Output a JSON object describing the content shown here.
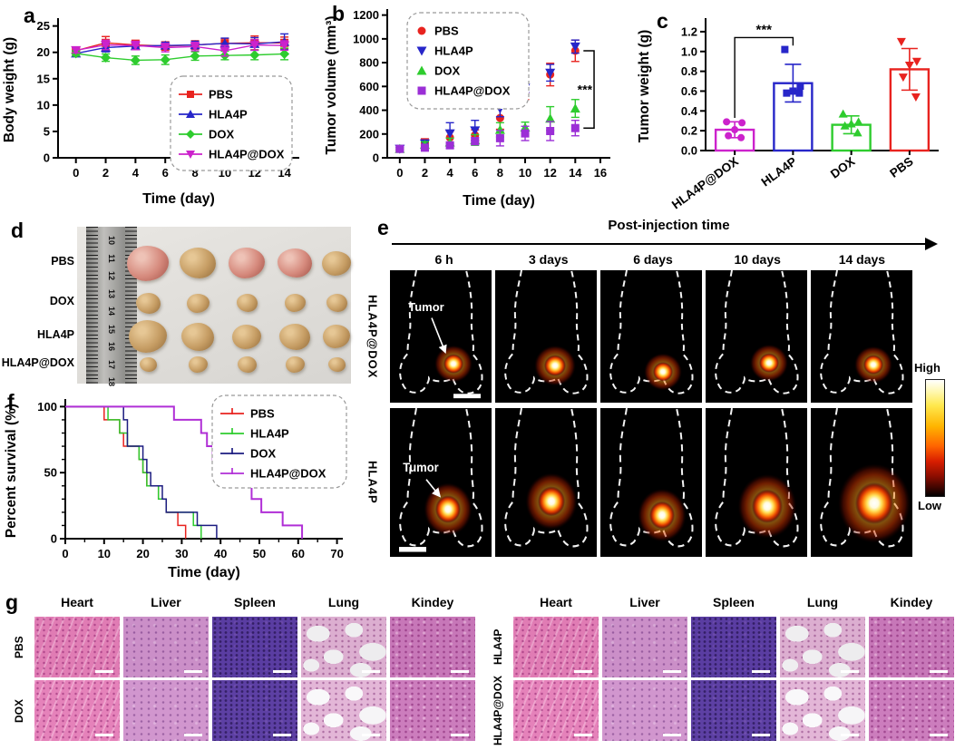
{
  "panel_labels": {
    "a": "a",
    "b": "b",
    "c": "c",
    "d": "d",
    "e": "e",
    "f": "f",
    "g": "g"
  },
  "panel_d": {
    "rows": [
      "PBS",
      "DOX",
      "HLA4P",
      "HLA4P@DOX"
    ],
    "ruler_numbers": [
      "10",
      "11",
      "12",
      "13",
      "14",
      "15",
      "16",
      "17",
      "18"
    ]
  },
  "panel_e": {
    "header": "Post-injection time",
    "timepoints": [
      "6 h",
      "3 days",
      "6 days",
      "10 days",
      "14 days"
    ],
    "row_labels": [
      "HLA4P@DOX",
      "HLA4P"
    ],
    "tumor_label": "Tumor",
    "colorbar_high": "High",
    "colorbar_low": "Low"
  },
  "panel_g": {
    "organs": [
      "Heart",
      "Liver",
      "Spleen",
      "Lung",
      "Kindey"
    ],
    "blocks": [
      {
        "rows": [
          "PBS",
          "DOX"
        ]
      },
      {
        "rows": [
          "HLA4P",
          "HLA4P@DOX"
        ]
      }
    ]
  },
  "chart_data": [
    {
      "id": "a",
      "type": "line",
      "xlabel": "Time (day)",
      "ylabel": "Body weight (g)",
      "x": [
        0,
        2,
        4,
        6,
        8,
        10,
        12,
        14
      ],
      "xticks": [
        0,
        2,
        4,
        6,
        8,
        10,
        12,
        14
      ],
      "yticks": [
        0,
        5,
        10,
        15,
        20,
        25
      ],
      "xlim": [
        -1.2,
        15
      ],
      "ylim": [
        0,
        25.8
      ],
      "legend_position": "inside bottom-right dashed box",
      "series": [
        {
          "name": "PBS",
          "color": "#e8231f",
          "marker": "square",
          "values": [
            20.3,
            21.8,
            21.4,
            21.2,
            21.4,
            21.7,
            21.8,
            21.8
          ],
          "errors": [
            0.6,
            1.2,
            0.9,
            0.8,
            0.8,
            0.9,
            1.3,
            1.1
          ]
        },
        {
          "name": "HLA4P",
          "color": "#2726c9",
          "marker": "triangle-up",
          "values": [
            19.8,
            20.9,
            21.2,
            21.3,
            21.4,
            21.7,
            21.6,
            22.0
          ],
          "errors": [
            0.5,
            0.8,
            0.7,
            0.6,
            0.7,
            1.0,
            1.2,
            1.5
          ]
        },
        {
          "name": "DOX",
          "color": "#2ecc2e",
          "marker": "diamond",
          "values": [
            19.8,
            19.0,
            18.5,
            18.6,
            19.3,
            19.4,
            19.5,
            19.7
          ],
          "errors": [
            0.5,
            0.7,
            0.8,
            0.9,
            0.8,
            0.8,
            0.9,
            1.1
          ]
        },
        {
          "name": "HLA4P@DOX",
          "color": "#cc22cc",
          "marker": "triangle-down",
          "values": [
            20.4,
            21.4,
            21.3,
            20.9,
            21.1,
            20.3,
            21.4,
            21.3
          ],
          "errors": [
            0.5,
            0.9,
            0.8,
            0.8,
            0.8,
            1.0,
            1.0,
            0.9
          ]
        }
      ]
    },
    {
      "id": "b",
      "type": "scatter",
      "xlabel": "Time (day)",
      "ylabel": "Tumor volume (mm³)",
      "x": [
        0,
        2,
        4,
        6,
        8,
        10,
        12,
        14
      ],
      "xticks": [
        0,
        2,
        4,
        6,
        8,
        10,
        12,
        14,
        16
      ],
      "yticks": [
        0,
        200,
        400,
        600,
        800,
        1000,
        1200
      ],
      "xlim": [
        -1,
        16.8
      ],
      "ylim": [
        0,
        1220
      ],
      "legend_position": "inside top-left dashed box",
      "significance": {
        "label": "***",
        "day": 14,
        "from": 900,
        "to": 250
      },
      "series": [
        {
          "name": "PBS",
          "color": "#e8231f",
          "marker": "circle",
          "values": [
            75,
            125,
            170,
            190,
            335,
            540,
            700,
            900
          ],
          "errors": [
            10,
            35,
            55,
            45,
            95,
            50,
            95,
            90
          ]
        },
        {
          "name": "HLA4P",
          "color": "#2726c9",
          "marker": "triangle-down",
          "values": [
            75,
            120,
            205,
            230,
            415,
            590,
            715,
            935
          ],
          "errors": [
            10,
            30,
            90,
            85,
            70,
            40,
            70,
            55
          ]
        },
        {
          "name": "DOX",
          "color": "#2ecc2e",
          "marker": "triangle-up",
          "values": [
            75,
            110,
            130,
            150,
            235,
            255,
            330,
            415
          ],
          "errors": [
            10,
            25,
            35,
            45,
            60,
            45,
            100,
            75
          ]
        },
        {
          "name": "HLA4P@DOX",
          "color": "#9b2fd6",
          "marker": "square",
          "values": [
            75,
            85,
            105,
            140,
            165,
            205,
            225,
            250
          ],
          "errors": [
            10,
            20,
            25,
            30,
            65,
            60,
            80,
            65
          ]
        }
      ]
    },
    {
      "id": "c",
      "type": "bar",
      "ylabel": "Tumor weight (g)",
      "categories": [
        "HLA4P@DOX",
        "HLA4P",
        "DOX",
        "PBS"
      ],
      "values": [
        0.21,
        0.68,
        0.26,
        0.82
      ],
      "errors": [
        0.08,
        0.19,
        0.09,
        0.21
      ],
      "colors": [
        "#cc22cc",
        "#2726c9",
        "#2ecc2e",
        "#e8231f"
      ],
      "markers": [
        "circle",
        "square",
        "triangle-up",
        "triangle-down"
      ],
      "points": [
        [
          0.29,
          0.28,
          0.21,
          0.15,
          0.13
        ],
        [
          1.02,
          0.65,
          0.6,
          0.58,
          0.58
        ],
        [
          0.37,
          0.29,
          0.27,
          0.25,
          0.18
        ],
        [
          1.1,
          0.9,
          0.86,
          0.74,
          0.54
        ]
      ],
      "yticks": [
        0,
        0.2,
        0.4,
        0.6,
        0.8,
        1,
        1.2
      ],
      "ydecimals": 1,
      "ylim": [
        0,
        1.3
      ],
      "significance": {
        "label": "***",
        "between": [
          0,
          1
        ]
      }
    },
    {
      "id": "f",
      "type": "step",
      "xlabel": "Time (day)",
      "ylabel": "Percent survival (%)",
      "xticks": [
        0,
        10,
        20,
        30,
        40,
        50,
        60,
        70
      ],
      "yticks": [
        0,
        50,
        100
      ],
      "xminor": 5,
      "yminor": 10,
      "xlim": [
        0,
        71.5
      ],
      "ylim": [
        0,
        103
      ],
      "legend_position": "inside top-right dashed box",
      "series": [
        {
          "name": "PBS",
          "color": "#e8231f",
          "drops": [
            [
              10,
              90
            ],
            [
              14,
              80
            ],
            [
              15,
              70
            ],
            [
              19,
              60
            ],
            [
              20,
              50
            ],
            [
              21,
              40
            ],
            [
              24,
              30
            ],
            [
              26,
              20
            ],
            [
              29,
              10
            ],
            [
              31,
              0
            ]
          ]
        },
        {
          "name": "HLA4P",
          "color": "#2ecc2e",
          "drops": [
            [
              11,
              90
            ],
            [
              14,
              80
            ],
            [
              16,
              70
            ],
            [
              19,
              60
            ],
            [
              20,
              50
            ],
            [
              21,
              40
            ],
            [
              24,
              30
            ],
            [
              26,
              20
            ],
            [
              33,
              10
            ],
            [
              35,
              0
            ]
          ]
        },
        {
          "name": "DOX",
          "color": "#1c1c80",
          "drops": [
            [
              15,
              90
            ],
            [
              16,
              70
            ],
            [
              20,
              60
            ],
            [
              21,
              50
            ],
            [
              22,
              40
            ],
            [
              25,
              30
            ],
            [
              26,
              20
            ],
            [
              34,
              10
            ],
            [
              39,
              0
            ]
          ]
        },
        {
          "name": "HLA4P@DOX",
          "color": "#b02fd6",
          "drops": [
            [
              28,
              90
            ],
            [
              35,
              80
            ],
            [
              36.5,
              70
            ],
            [
              38,
              60
            ],
            [
              42,
              50
            ],
            [
              45.5,
              40
            ],
            [
              48,
              30
            ],
            [
              50.5,
              20
            ],
            [
              56,
              10
            ],
            [
              61,
              0
            ]
          ]
        }
      ]
    }
  ]
}
